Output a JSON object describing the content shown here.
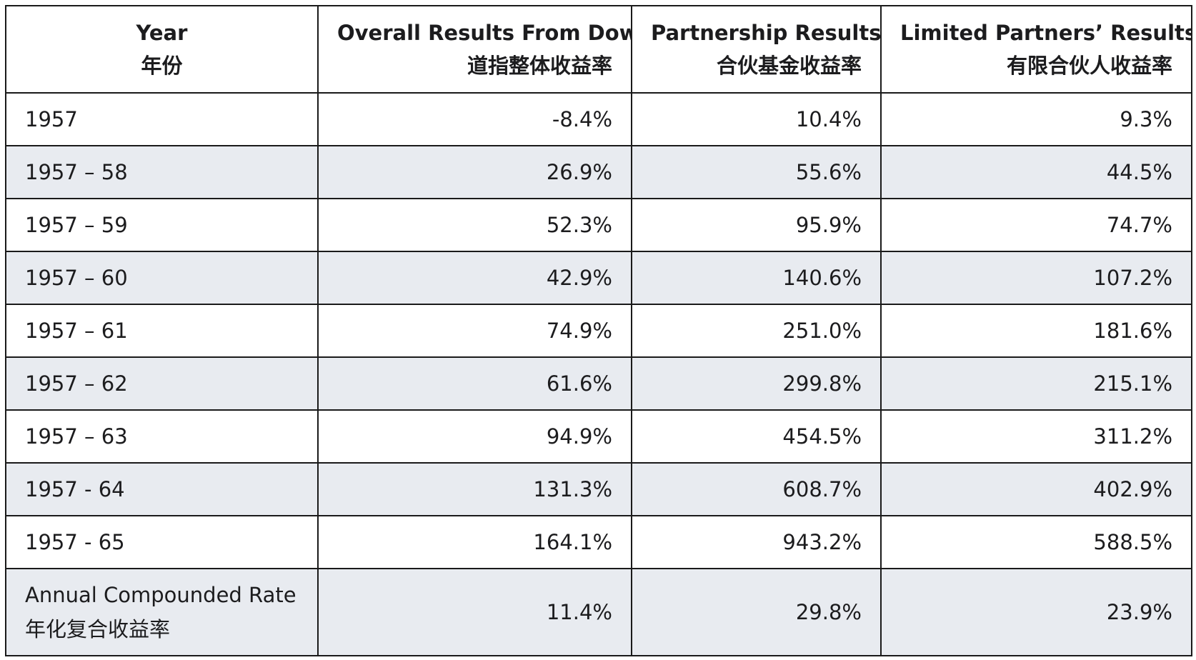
{
  "header": {
    "year": {
      "en": "Year",
      "zh": "年份"
    },
    "dow": {
      "en": "Overall Results From Dow",
      "zh": "道指整体收益率"
    },
    "partnership": {
      "en": "Partnership Results",
      "zh": "合伙基金收益率"
    },
    "limited": {
      "en": "Limited Partners’ Results",
      "zh": "有限合伙人收益率"
    }
  },
  "rows": [
    {
      "year": "1957",
      "dow": "-8.4%",
      "partnership": "10.4%",
      "limited": "9.3%"
    },
    {
      "year": "1957 – 58",
      "dow": "26.9%",
      "partnership": "55.6%",
      "limited": "44.5%"
    },
    {
      "year": "1957 – 59",
      "dow": "52.3%",
      "partnership": "95.9%",
      "limited": "74.7%"
    },
    {
      "year": "1957 – 60",
      "dow": "42.9%",
      "partnership": "140.6%",
      "limited": "107.2%"
    },
    {
      "year": "1957 – 61",
      "dow": "74.9%",
      "partnership": "251.0%",
      "limited": "181.6%"
    },
    {
      "year": "1957 – 62",
      "dow": "61.6%",
      "partnership": "299.8%",
      "limited": "215.1%"
    },
    {
      "year": "1957 – 63",
      "dow": "94.9%",
      "partnership": "454.5%",
      "limited": "311.2%"
    },
    {
      "year": "1957 - 64",
      "dow": "131.3%",
      "partnership": "608.7%",
      "limited": "402.9%"
    },
    {
      "year": "1957 - 65",
      "dow": "164.1%",
      "partnership": "943.2%",
      "limited": "588.5%"
    }
  ],
  "summary": {
    "label_en": "Annual Compounded Rate",
    "label_zh": "年化复合收益率",
    "dow": "11.4%",
    "partnership": "29.8%",
    "limited": "23.9%"
  },
  "colors": {
    "shaded_row": "#e8ebf0",
    "border": "#1a1a1a"
  }
}
